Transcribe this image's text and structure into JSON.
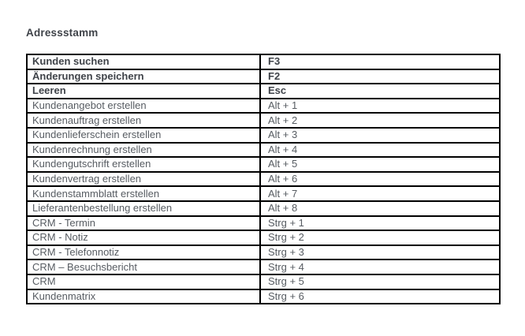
{
  "page": {
    "title": "Adressstamm"
  },
  "colors": {
    "background": "#ffffff",
    "title_text": "#3f4349",
    "bold_row_text": "#3f4349",
    "regular_row_text": "#575c62",
    "table_border": "#000000"
  },
  "table": {
    "columns": [
      "action",
      "shortcut"
    ],
    "rows": [
      {
        "action": "Kunden suchen",
        "shortcut": "F3",
        "bold": true
      },
      {
        "action": "Änderungen speichern",
        "shortcut": "F2",
        "bold": true
      },
      {
        "action": "Leeren",
        "shortcut": "Esc",
        "bold": true
      },
      {
        "action": "Kundenangebot erstellen",
        "shortcut": "Alt + 1",
        "bold": false
      },
      {
        "action": "Kundenauftrag erstellen",
        "shortcut": "Alt + 2",
        "bold": false
      },
      {
        "action": "Kundenlieferschein erstellen",
        "shortcut": "Alt + 3",
        "bold": false
      },
      {
        "action": "Kundenrechnung erstellen",
        "shortcut": "Alt + 4",
        "bold": false
      },
      {
        "action": "Kundengutschrift erstellen",
        "shortcut": "Alt + 5",
        "bold": false
      },
      {
        "action": "Kundenvertrag erstellen",
        "shortcut": "Alt + 6",
        "bold": false
      },
      {
        "action": "Kundenstammblatt erstellen",
        "shortcut": "Alt + 7",
        "bold": false
      },
      {
        "action": "Lieferantenbestellung erstellen",
        "shortcut": "Alt + 8",
        "bold": false
      },
      {
        "action": "CRM - Termin",
        "shortcut": "Strg + 1",
        "bold": false
      },
      {
        "action": "CRM - Notiz",
        "shortcut": "Strg + 2",
        "bold": false
      },
      {
        "action": "CRM - Telefonnotiz",
        "shortcut": "Strg + 3",
        "bold": false
      },
      {
        "action": "CRM – Besuchsbericht",
        "shortcut": "Strg + 4",
        "bold": false
      },
      {
        "action": "CRM",
        "shortcut": "Strg + 5",
        "bold": false
      },
      {
        "action": "Kundenmatrix",
        "shortcut": "Strg + 6",
        "bold": false
      }
    ]
  }
}
